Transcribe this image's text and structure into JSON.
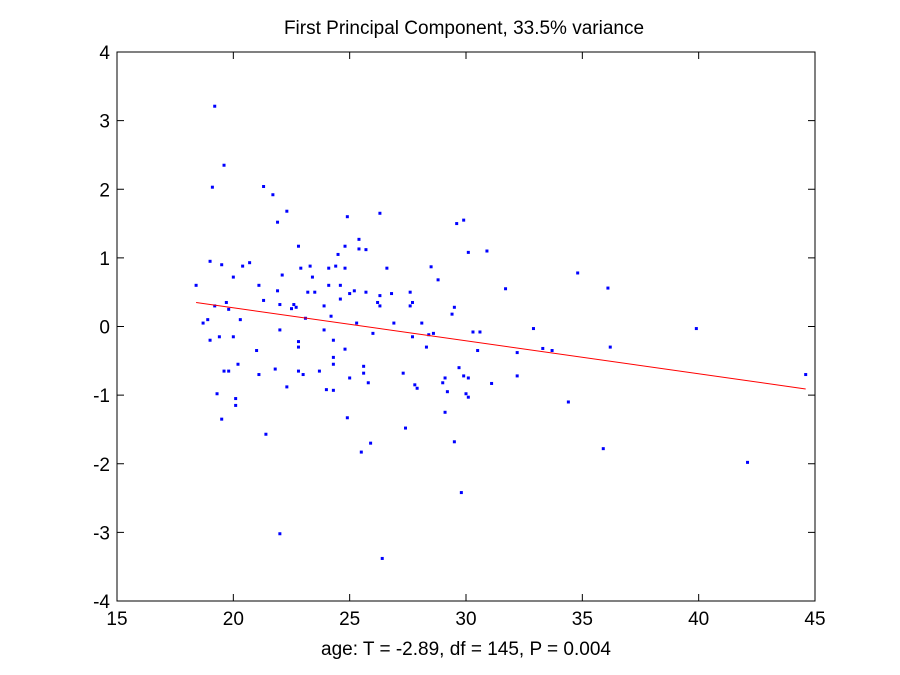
{
  "chart_data": {
    "type": "scatter",
    "title": "First Principal Component, 33.5% variance",
    "xlabel": "age: T = -2.89, df = 145, P = 0.004",
    "ylabel": "",
    "xlim": [
      15,
      45
    ],
    "ylim": [
      -4,
      4
    ],
    "xticks": [
      15,
      20,
      25,
      30,
      35,
      40,
      45
    ],
    "yticks": [
      -4,
      -3,
      -2,
      -1,
      0,
      1,
      2,
      3,
      4
    ],
    "grid": false,
    "marker_color": "#0000ff",
    "fit_color": "#ff0000",
    "fit_line": {
      "x": [
        18.4,
        44.6
      ],
      "y": [
        0.35,
        -0.91
      ]
    },
    "points": [
      [
        18.4,
        0.6
      ],
      [
        18.7,
        0.05
      ],
      [
        18.9,
        0.1
      ],
      [
        19.0,
        0.95
      ],
      [
        19.0,
        -0.2
      ],
      [
        19.1,
        2.03
      ],
      [
        19.2,
        3.21
      ],
      [
        19.2,
        0.3
      ],
      [
        19.3,
        -0.98
      ],
      [
        19.4,
        -0.15
      ],
      [
        19.5,
        -1.35
      ],
      [
        19.5,
        0.9
      ],
      [
        19.6,
        2.35
      ],
      [
        19.6,
        -0.65
      ],
      [
        19.7,
        0.35
      ],
      [
        19.8,
        0.25
      ],
      [
        19.8,
        -0.65
      ],
      [
        20.0,
        -0.15
      ],
      [
        20.0,
        0.72
      ],
      [
        20.1,
        -1.15
      ],
      [
        20.1,
        -1.05
      ],
      [
        20.2,
        -0.55
      ],
      [
        20.3,
        0.1
      ],
      [
        20.4,
        0.88
      ],
      [
        20.7,
        0.93
      ],
      [
        21.0,
        -0.35
      ],
      [
        21.1,
        0.6
      ],
      [
        21.1,
        -0.7
      ],
      [
        21.3,
        0.38
      ],
      [
        21.3,
        2.04
      ],
      [
        21.4,
        -1.57
      ],
      [
        21.7,
        1.92
      ],
      [
        21.8,
        -0.62
      ],
      [
        21.9,
        1.52
      ],
      [
        21.9,
        0.52
      ],
      [
        22.0,
        0.32
      ],
      [
        22.0,
        -0.05
      ],
      [
        22.0,
        -3.02
      ],
      [
        22.1,
        0.75
      ],
      [
        22.3,
        1.68
      ],
      [
        22.3,
        -0.88
      ],
      [
        22.5,
        0.26
      ],
      [
        22.6,
        0.32
      ],
      [
        22.7,
        0.28
      ],
      [
        22.8,
        1.17
      ],
      [
        22.8,
        -0.65
      ],
      [
        22.8,
        -0.22
      ],
      [
        22.8,
        -0.3
      ],
      [
        22.9,
        0.85
      ],
      [
        23.0,
        -0.7
      ],
      [
        23.1,
        0.12
      ],
      [
        23.2,
        0.5
      ],
      [
        23.3,
        0.88
      ],
      [
        23.4,
        0.72
      ],
      [
        23.5,
        0.5
      ],
      [
        23.7,
        -0.65
      ],
      [
        23.9,
        0.3
      ],
      [
        23.9,
        -0.05
      ],
      [
        24.0,
        -0.92
      ],
      [
        24.1,
        0.85
      ],
      [
        24.1,
        0.6
      ],
      [
        24.2,
        0.15
      ],
      [
        24.3,
        -0.55
      ],
      [
        24.3,
        -0.45
      ],
      [
        24.3,
        -0.93
      ],
      [
        24.3,
        -0.2
      ],
      [
        24.4,
        0.88
      ],
      [
        24.5,
        1.05
      ],
      [
        24.6,
        0.6
      ],
      [
        24.6,
        0.4
      ],
      [
        24.8,
        -0.33
      ],
      [
        24.8,
        0.85
      ],
      [
        24.8,
        1.17
      ],
      [
        24.9,
        -1.33
      ],
      [
        24.9,
        1.6
      ],
      [
        25.0,
        0.48
      ],
      [
        25.0,
        -0.75
      ],
      [
        25.2,
        0.52
      ],
      [
        25.3,
        0.05
      ],
      [
        25.4,
        1.27
      ],
      [
        25.4,
        1.13
      ],
      [
        25.5,
        -1.83
      ],
      [
        25.6,
        -0.58
      ],
      [
        25.6,
        -0.68
      ],
      [
        25.7,
        0.5
      ],
      [
        25.7,
        1.12
      ],
      [
        25.8,
        -0.82
      ],
      [
        25.9,
        -1.7
      ],
      [
        26.0,
        -0.1
      ],
      [
        26.2,
        0.35
      ],
      [
        26.3,
        0.3
      ],
      [
        26.3,
        1.65
      ],
      [
        26.3,
        0.45
      ],
      [
        26.4,
        -3.38
      ],
      [
        26.6,
        0.85
      ],
      [
        26.8,
        0.48
      ],
      [
        26.9,
        0.05
      ],
      [
        27.3,
        -0.68
      ],
      [
        27.4,
        -1.48
      ],
      [
        27.6,
        0.3
      ],
      [
        27.6,
        0.5
      ],
      [
        27.7,
        0.35
      ],
      [
        27.7,
        -0.15
      ],
      [
        27.8,
        -0.85
      ],
      [
        27.9,
        -0.9
      ],
      [
        28.1,
        0.05
      ],
      [
        28.3,
        -0.3
      ],
      [
        28.4,
        -0.12
      ],
      [
        28.5,
        0.87
      ],
      [
        28.6,
        -0.1
      ],
      [
        28.8,
        0.68
      ],
      [
        29.0,
        -0.82
      ],
      [
        29.1,
        -0.75
      ],
      [
        29.1,
        -1.25
      ],
      [
        29.2,
        -0.95
      ],
      [
        29.4,
        0.18
      ],
      [
        29.5,
        -1.68
      ],
      [
        29.5,
        0.28
      ],
      [
        29.6,
        1.5
      ],
      [
        29.7,
        -0.6
      ],
      [
        29.8,
        -2.42
      ],
      [
        29.9,
        1.55
      ],
      [
        29.9,
        -0.72
      ],
      [
        30.0,
        -0.98
      ],
      [
        30.1,
        -0.75
      ],
      [
        30.1,
        -1.03
      ],
      [
        30.1,
        1.08
      ],
      [
        30.3,
        -0.08
      ],
      [
        30.5,
        -0.35
      ],
      [
        30.6,
        -0.08
      ],
      [
        30.9,
        1.1
      ],
      [
        31.1,
        -0.83
      ],
      [
        31.7,
        0.55
      ],
      [
        32.2,
        -0.72
      ],
      [
        32.2,
        -0.38
      ],
      [
        32.9,
        -0.03
      ],
      [
        33.3,
        -0.32
      ],
      [
        33.7,
        -0.35
      ],
      [
        34.4,
        -1.1
      ],
      [
        34.8,
        0.78
      ],
      [
        35.9,
        -1.78
      ],
      [
        36.1,
        0.56
      ],
      [
        36.2,
        -0.3
      ],
      [
        39.9,
        -0.03
      ],
      [
        42.1,
        -1.98
      ],
      [
        44.6,
        -0.7
      ]
    ]
  }
}
